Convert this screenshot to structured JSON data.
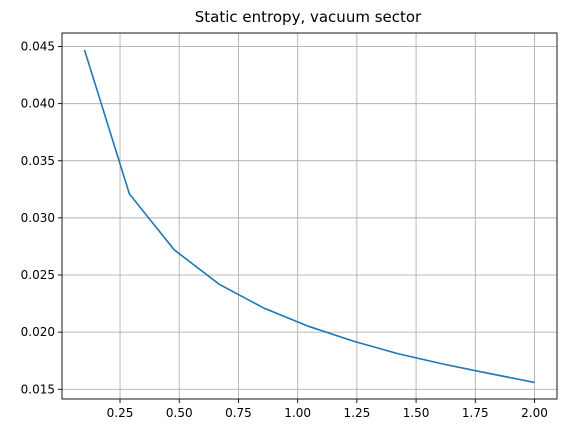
{
  "chart_data": {
    "type": "line",
    "title": "Static entropy, vacuum sector",
    "xlabel": "",
    "ylabel": "",
    "xlim": [
      0.005,
      2.095
    ],
    "ylim": [
      0.01415,
      0.04618
    ],
    "x_ticks": [
      0.25,
      0.5,
      0.75,
      1.0,
      1.25,
      1.5,
      1.75,
      2.0
    ],
    "x_tick_labels": [
      "0.25",
      "0.50",
      "0.75",
      "1.00",
      "1.25",
      "1.50",
      "1.75",
      "2.00"
    ],
    "y_ticks": [
      0.015,
      0.02,
      0.025,
      0.03,
      0.035,
      0.04,
      0.045
    ],
    "y_tick_labels": [
      "0.015",
      "0.020",
      "0.025",
      "0.030",
      "0.035",
      "0.040",
      "0.045"
    ],
    "grid": true,
    "series": [
      {
        "color": "#1f77b4",
        "x": [
          0.1,
          0.2895,
          0.479,
          0.6684,
          0.8579,
          1.0474,
          1.2368,
          1.4263,
          1.6158,
          1.8053,
          2.0
        ],
        "y": [
          0.0447,
          0.0321,
          0.0272,
          0.0242,
          0.0221,
          0.0205,
          0.0192,
          0.0181,
          0.0172,
          0.0164,
          0.0156
        ]
      }
    ]
  }
}
